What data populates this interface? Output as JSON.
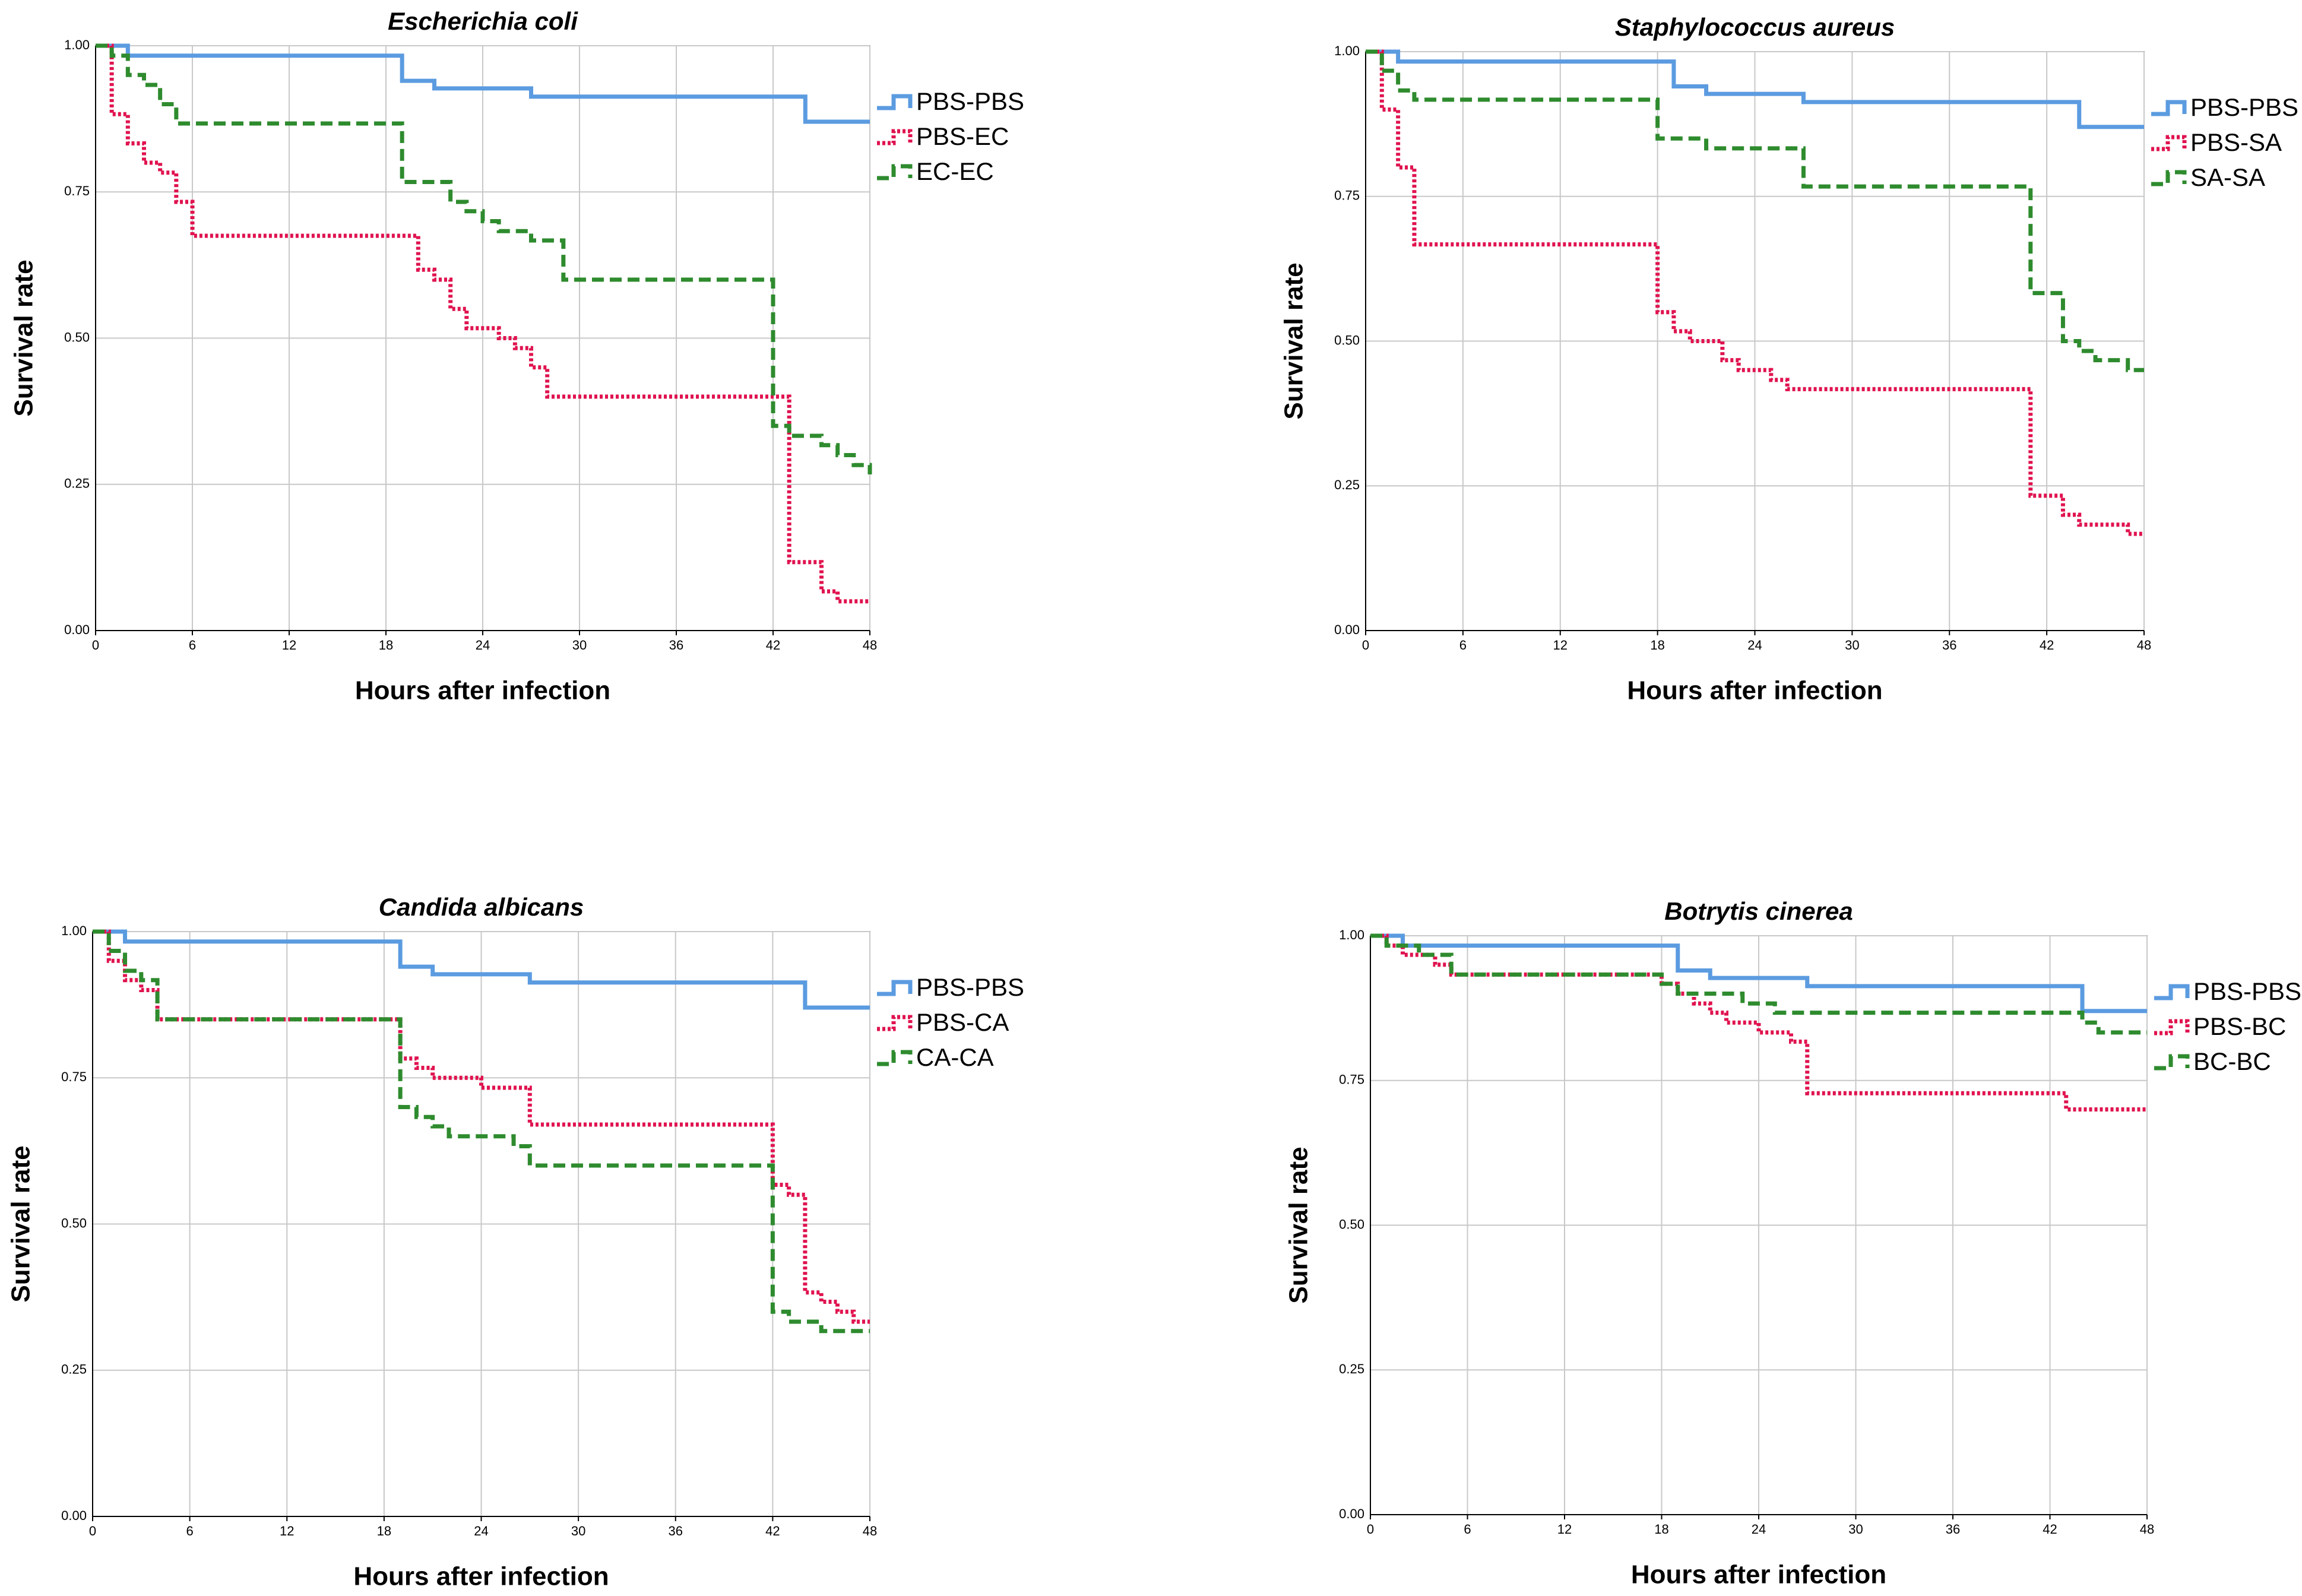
{
  "chart_data": [
    {
      "type": "step",
      "title": "Escherichia coli",
      "xlabel": "Hours after infection",
      "ylabel": "Survival rate",
      "xlim": [
        0,
        48
      ],
      "ylim": [
        0,
        1
      ],
      "xticks": [
        0,
        6,
        12,
        18,
        24,
        30,
        36,
        42,
        48
      ],
      "yticks": [
        {
          "value": 0,
          "label": "0.00"
        },
        0.25,
        {
          "value": 0.5,
          "label": "0.50"
        },
        0.75,
        {
          "value": 1,
          "label": "1.00"
        }
      ],
      "grid": true,
      "legend": "right",
      "series": [
        {
          "name": "PBS-PBS",
          "color": "#5b9be0",
          "style": "solid",
          "x": [
            0,
            2,
            19,
            21,
            27,
            44,
            48
          ],
          "values": [
            1,
            0.983,
            0.94,
            0.927,
            0.913,
            0.87,
            0.87
          ]
        },
        {
          "name": "PBS-EC",
          "color": "#e0134f",
          "style": "dotted",
          "x": [
            0,
            1,
            2,
            3,
            4,
            5,
            6,
            20,
            21,
            22,
            23,
            25,
            26,
            27,
            28,
            43,
            45,
            46,
            48
          ],
          "values": [
            1,
            0.883,
            0.833,
            0.8,
            0.783,
            0.733,
            0.675,
            0.617,
            0.6,
            0.55,
            0.517,
            0.5,
            0.483,
            0.45,
            0.4,
            0.117,
            0.067,
            0.05,
            0.05
          ]
        },
        {
          "name": "EC-EC",
          "color": "#2e8b2e",
          "style": "dashed",
          "x": [
            0,
            1,
            2,
            3,
            4,
            5,
            19,
            22,
            23,
            24,
            25,
            27,
            29,
            42,
            43,
            45,
            46,
            47,
            48
          ],
          "values": [
            1,
            0.983,
            0.95,
            0.933,
            0.9,
            0.867,
            0.767,
            0.733,
            0.717,
            0.7,
            0.683,
            0.667,
            0.6,
            0.35,
            0.333,
            0.317,
            0.3,
            0.283,
            0.267
          ]
        }
      ]
    },
    {
      "type": "step",
      "title": "Staphylococcus aureus",
      "xlabel": "Hours after infection",
      "ylabel": "Survival rate",
      "xlim": [
        0,
        48
      ],
      "ylim": [
        0,
        1
      ],
      "xticks": [
        0,
        6,
        12,
        18,
        24,
        30,
        36,
        42,
        48
      ],
      "yticks": [
        {
          "value": 0,
          "label": "0.00"
        },
        0.25,
        {
          "value": 0.5,
          "label": "0.50"
        },
        0.75,
        {
          "value": 1,
          "label": "1.00"
        }
      ],
      "grid": true,
      "legend": "right",
      "series": [
        {
          "name": "PBS-PBS",
          "color": "#5b9be0",
          "style": "solid",
          "x": [
            0,
            2,
            19,
            21,
            27,
            44,
            48
          ],
          "values": [
            1,
            0.983,
            0.94,
            0.927,
            0.913,
            0.87,
            0.87
          ]
        },
        {
          "name": "PBS-SA",
          "color": "#e0134f",
          "style": "dotted",
          "x": [
            0,
            1,
            2,
            3,
            18,
            19,
            20,
            22,
            23,
            25,
            26,
            41,
            43,
            44,
            47,
            48
          ],
          "values": [
            1,
            0.9,
            0.8,
            0.667,
            0.55,
            0.517,
            0.5,
            0.467,
            0.45,
            0.433,
            0.417,
            0.233,
            0.2,
            0.183,
            0.167,
            0.167
          ]
        },
        {
          "name": "SA-SA",
          "color": "#2e8b2e",
          "style": "dashed",
          "x": [
            0,
            1,
            2,
            3,
            18,
            21,
            27,
            41,
            43,
            44,
            45,
            47,
            48
          ],
          "values": [
            1,
            0.967,
            0.933,
            0.917,
            0.85,
            0.833,
            0.767,
            0.583,
            0.5,
            0.483,
            0.467,
            0.45,
            0.45
          ]
        }
      ]
    },
    {
      "type": "step",
      "title": "Candida albicans",
      "xlabel": "Hours after infection",
      "ylabel": "Survival rate",
      "xlim": [
        0,
        48
      ],
      "ylim": [
        0,
        1
      ],
      "xticks": [
        0,
        6,
        12,
        18,
        24,
        30,
        36,
        42,
        48
      ],
      "yticks": [
        {
          "value": 0,
          "label": "0.00"
        },
        0.25,
        {
          "value": 0.5,
          "label": "0.50"
        },
        0.75,
        {
          "value": 1,
          "label": "1.00"
        }
      ],
      "grid": true,
      "legend": "right",
      "series": [
        {
          "name": "PBS-PBS",
          "color": "#5b9be0",
          "style": "solid",
          "x": [
            0,
            2,
            19,
            21,
            27,
            44,
            48
          ],
          "values": [
            1,
            0.983,
            0.94,
            0.927,
            0.913,
            0.87,
            0.87
          ]
        },
        {
          "name": "PBS-CA",
          "color": "#e0134f",
          "style": "dotted",
          "x": [
            0,
            1,
            2,
            3,
            4,
            19,
            20,
            21,
            24,
            27,
            42,
            43,
            44,
            45,
            46,
            47,
            48
          ],
          "values": [
            1,
            0.95,
            0.917,
            0.9,
            0.85,
            0.783,
            0.767,
            0.75,
            0.733,
            0.67,
            0.567,
            0.55,
            0.383,
            0.367,
            0.35,
            0.333,
            0.333
          ]
        },
        {
          "name": "CA-CA",
          "color": "#2e8b2e",
          "style": "dashed",
          "x": [
            0,
            1,
            2,
            3,
            4,
            19,
            20,
            21,
            22,
            26,
            27,
            42,
            43,
            45,
            48
          ],
          "values": [
            1,
            0.967,
            0.933,
            0.917,
            0.85,
            0.7,
            0.683,
            0.667,
            0.65,
            0.633,
            0.6,
            0.35,
            0.333,
            0.317,
            0.317
          ]
        }
      ]
    },
    {
      "type": "step",
      "title": "Botrytis cinerea",
      "xlabel": "Hours after infection",
      "ylabel": "Survival rate",
      "xlim": [
        0,
        48
      ],
      "ylim": [
        0,
        1
      ],
      "xticks": [
        0,
        6,
        12,
        18,
        24,
        30,
        36,
        42,
        48
      ],
      "yticks": [
        {
          "value": 0,
          "label": "0.00"
        },
        0.25,
        {
          "value": 0.5,
          "label": "0.50"
        },
        0.75,
        {
          "value": 1,
          "label": "1.00"
        }
      ],
      "grid": true,
      "legend": "right",
      "series": [
        {
          "name": "PBS-PBS",
          "color": "#5b9be0",
          "style": "solid",
          "x": [
            0,
            2,
            19,
            21,
            27,
            44,
            48
          ],
          "values": [
            1,
            0.983,
            0.94,
            0.927,
            0.913,
            0.87,
            0.87
          ]
        },
        {
          "name": "PBS-BC",
          "color": "#e0134f",
          "style": "dotted",
          "x": [
            0,
            1,
            2,
            4,
            5,
            18,
            19,
            20,
            21,
            22,
            24,
            26,
            27,
            43,
            48
          ],
          "values": [
            1,
            0.983,
            0.967,
            0.95,
            0.933,
            0.917,
            0.9,
            0.883,
            0.867,
            0.85,
            0.833,
            0.817,
            0.728,
            0.7,
            0.7
          ]
        },
        {
          "name": "BC-BC",
          "color": "#2e8b2e",
          "style": "dashed",
          "x": [
            0,
            1,
            3,
            5,
            18,
            19,
            23,
            25,
            44,
            45,
            48
          ],
          "values": [
            1,
            0.983,
            0.967,
            0.933,
            0.917,
            0.9,
            0.883,
            0.867,
            0.85,
            0.833,
            0.833
          ]
        }
      ]
    }
  ]
}
